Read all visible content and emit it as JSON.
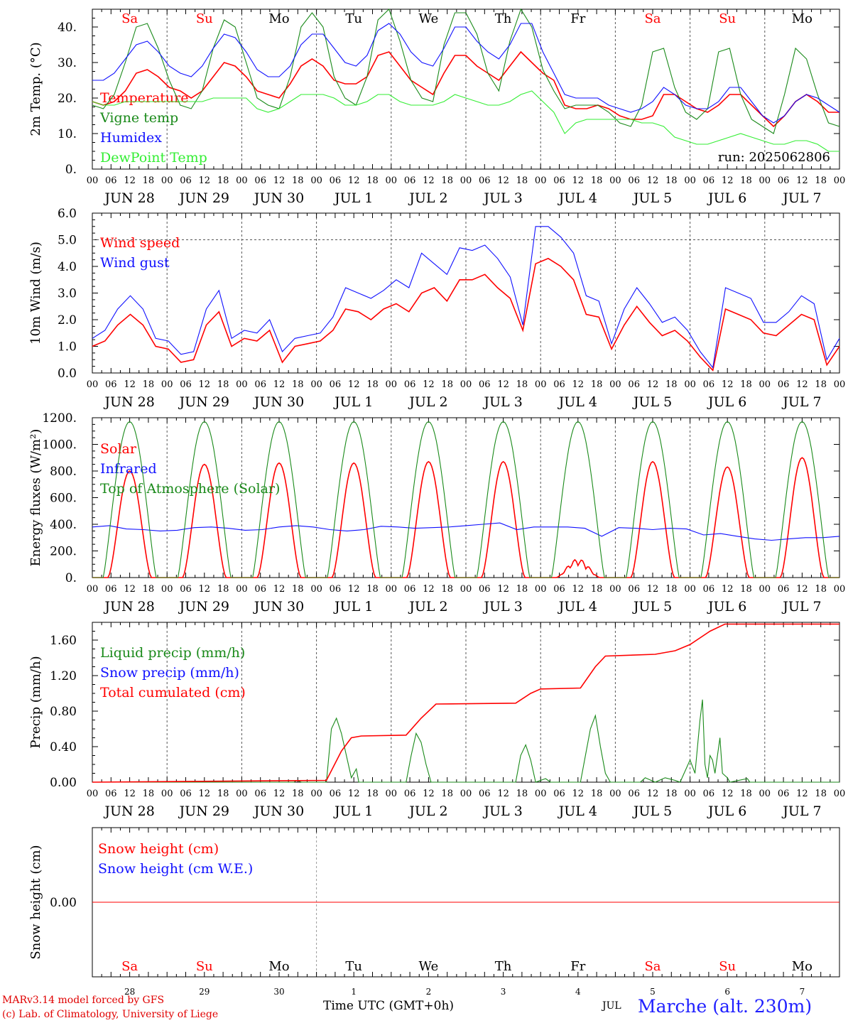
{
  "colors": {
    "red": "#ff0000",
    "green": "#1a8a1a",
    "blue": "#1010ff",
    "lime": "#33ee33",
    "axis": "#000000"
  },
  "days": {
    "weekday_top": [
      "Sa",
      "Su",
      "Mo",
      "Tu",
      "We",
      "Th",
      "Fr",
      "Sa",
      "Su",
      "Mo"
    ],
    "weekday_colors": [
      "#ff0000",
      "#ff0000",
      "#000000",
      "#000000",
      "#000000",
      "#000000",
      "#000000",
      "#ff0000",
      "#ff0000",
      "#000000"
    ],
    "date_labels": [
      "JUN 28",
      "JUN 29",
      "JUN 30",
      "JUL  1",
      "JUL  2",
      "JUL  3",
      "JUL  4",
      "JUL  5",
      "JUL  6",
      "JUL  7"
    ],
    "hour_ticks": [
      "00",
      "06",
      "12",
      "18"
    ],
    "last_tick": "00",
    "day_numbers": [
      "28",
      "29",
      "30",
      "1",
      "2",
      "3",
      "4",
      "5",
      "6",
      "7"
    ]
  },
  "footer": {
    "credit_line1": "MARv3.14 model forced by GFS",
    "credit_line2": "(c) Lab. of Climatology, University of Liege",
    "time_label": "Time UTC (GMT+0h)",
    "month_label": "JUL",
    "station": "Marche (alt. 230m)"
  },
  "chart_data": [
    {
      "type": "line",
      "ylabel": "2m Temp. (°C)",
      "ylim": [
        0,
        45
      ],
      "yticks": [
        0,
        10,
        20,
        30,
        40
      ],
      "ytick_labels": [
        "0.",
        "10.",
        "20.",
        "30.",
        "40."
      ],
      "annotation": "run: 2025062806",
      "x_hours_step": 6,
      "series": [
        {
          "name": "Temperature",
          "color": "#ff0000",
          "values": [
            19,
            18,
            19,
            22,
            27,
            28,
            26,
            23,
            22,
            20,
            22,
            26,
            30,
            29,
            26,
            22,
            21,
            20,
            24,
            29,
            31,
            29,
            25,
            24,
            24,
            26,
            32,
            33,
            29,
            25,
            23,
            21,
            27,
            32,
            32,
            29,
            27,
            25,
            29,
            33,
            30,
            27,
            25,
            18,
            17,
            17,
            18,
            17,
            15,
            14,
            14,
            15,
            21,
            21,
            19,
            17,
            16,
            18,
            21,
            21,
            18,
            15,
            12,
            15,
            19,
            21,
            19,
            16,
            16
          ]
        },
        {
          "name": "Vigne temp",
          "color": "#1a8a1a",
          "values": [
            18,
            17,
            21,
            30,
            40,
            41,
            34,
            25,
            18,
            17,
            22,
            34,
            42,
            40,
            30,
            20,
            18,
            17,
            26,
            40,
            44,
            40,
            26,
            20,
            18,
            26,
            42,
            45,
            36,
            25,
            20,
            19,
            35,
            44,
            44,
            38,
            27,
            22,
            36,
            45,
            40,
            28,
            22,
            17,
            18,
            18,
            18,
            16,
            13,
            12,
            18,
            33,
            34,
            23,
            16,
            14,
            17,
            33,
            34,
            21,
            14,
            12,
            10,
            21,
            34,
            31,
            21,
            13,
            12
          ]
        },
        {
          "name": "Humidex",
          "color": "#1010ff",
          "values": [
            25,
            25,
            27,
            31,
            35,
            36,
            33,
            29,
            27,
            26,
            29,
            34,
            38,
            37,
            33,
            28,
            26,
            26,
            29,
            35,
            38,
            38,
            34,
            30,
            29,
            32,
            39,
            41,
            38,
            33,
            30,
            29,
            34,
            40,
            40,
            36,
            33,
            31,
            35,
            41,
            41,
            33,
            27,
            21,
            20,
            20,
            20,
            18,
            17,
            16,
            17,
            19,
            23,
            21,
            18,
            17,
            17,
            19,
            23,
            23,
            19,
            15,
            13,
            15,
            19,
            21,
            20,
            18,
            16
          ]
        },
        {
          "name": "DewPoint Temp",
          "color": "#33ee33",
          "values": [
            19,
            18,
            18,
            19,
            19,
            19,
            19,
            19,
            19,
            19,
            19,
            20,
            20,
            20,
            20,
            17,
            16,
            17,
            19,
            21,
            21,
            21,
            20,
            18,
            18,
            19,
            21,
            21,
            19,
            18,
            18,
            18,
            19,
            21,
            20,
            19,
            18,
            18,
            19,
            21,
            22,
            19,
            16,
            10,
            13,
            14,
            14,
            14,
            14,
            14,
            13,
            13,
            12,
            9,
            8,
            7,
            7,
            8,
            9,
            10,
            9,
            8,
            7,
            7,
            8,
            8,
            7,
            5,
            5
          ]
        }
      ]
    },
    {
      "type": "line",
      "ylabel": "10m Wind (m/s)",
      "ylim": [
        0,
        6
      ],
      "yticks": [
        0,
        1,
        2,
        3,
        4,
        5,
        6
      ],
      "ytick_labels": [
        "0.0",
        "1.0",
        "2.0",
        "3.0",
        "4.0",
        "5.0",
        "6.0"
      ],
      "hline": 5,
      "x_hours_step": 6,
      "series": [
        {
          "name": "Wind speed",
          "color": "#ff0000",
          "values": [
            1.0,
            1.2,
            1.8,
            2.2,
            1.8,
            1.0,
            0.9,
            0.4,
            0.5,
            1.8,
            2.3,
            1.0,
            1.3,
            1.2,
            1.6,
            0.4,
            1.0,
            1.1,
            1.2,
            1.6,
            2.4,
            2.3,
            2.0,
            2.4,
            2.6,
            2.3,
            3.0,
            3.2,
            2.7,
            3.5,
            3.5,
            3.7,
            3.2,
            2.8,
            1.6,
            4.1,
            4.3,
            4.0,
            3.5,
            2.2,
            2.1,
            0.9,
            1.8,
            2.5,
            1.9,
            1.4,
            1.6,
            1.2,
            0.6,
            0.1,
            2.4,
            2.2,
            2.0,
            1.5,
            1.4,
            1.8,
            2.2,
            2.0,
            0.3,
            1.0
          ]
        },
        {
          "name": "Wind gust",
          "color": "#1010ff",
          "values": [
            1.3,
            1.6,
            2.4,
            2.9,
            2.4,
            1.3,
            1.2,
            0.7,
            0.8,
            2.4,
            3.1,
            1.3,
            1.6,
            1.5,
            2.0,
            0.8,
            1.3,
            1.4,
            1.5,
            2.1,
            3.2,
            3.0,
            2.8,
            3.1,
            3.5,
            3.2,
            4.5,
            4.1,
            3.7,
            4.7,
            4.6,
            4.8,
            4.3,
            3.6,
            1.8,
            5.5,
            5.5,
            5.1,
            4.5,
            2.9,
            2.7,
            1.1,
            2.4,
            3.2,
            2.6,
            1.9,
            2.1,
            1.6,
            0.8,
            0.2,
            3.2,
            3.0,
            2.8,
            1.9,
            1.9,
            2.3,
            2.9,
            2.6,
            0.5,
            1.3
          ]
        }
      ]
    },
    {
      "type": "line",
      "ylabel": "Energy fluxes (W/m²)",
      "ylim": [
        0,
        1200
      ],
      "yticks": [
        0,
        200,
        400,
        600,
        800,
        1000,
        1200
      ],
      "ytick_labels": [
        "0.",
        "200.",
        "400.",
        "600.",
        "800.",
        "1000.",
        "1200."
      ],
      "x_hours_step": 6,
      "series": [
        {
          "name": "Solar",
          "color": "#ff0000",
          "peaks": [
            800,
            850,
            860,
            860,
            870,
            870,
            140,
            870,
            830,
            900
          ]
        },
        {
          "name": "Infrared",
          "color": "#1010ff",
          "values": [
            380,
            390,
            365,
            360,
            350,
            355,
            375,
            380,
            370,
            355,
            360,
            380,
            390,
            380,
            360,
            350,
            360,
            385,
            380,
            370,
            375,
            380,
            390,
            400,
            410,
            360,
            380,
            380,
            380,
            370,
            310,
            375,
            370,
            360,
            370,
            365,
            320,
            330,
            310,
            290,
            280,
            290,
            300,
            300,
            310
          ]
        },
        {
          "name": "Top of Atmosphere (Solar)",
          "color": "#1a8a1a",
          "peaks": [
            1170,
            1170,
            1170,
            1170,
            1170,
            1170,
            1170,
            1170,
            1170,
            1170
          ]
        }
      ]
    },
    {
      "type": "line",
      "ylabel": "Precip (mm/h)",
      "ylim": [
        0,
        1.8
      ],
      "yticks": [
        0,
        0.4,
        0.8,
        1.2,
        1.6
      ],
      "ytick_labels": [
        "0.00",
        "0.40",
        "0.80",
        "1.20",
        "1.60"
      ],
      "x_hours_step": 6,
      "series": [
        {
          "name": "Liquid precip (mm/h)",
          "color": "#1a8a1a",
          "points": [
            [
              0,
              0
            ],
            [
              81,
              0
            ],
            [
              82,
              0.02
            ],
            [
              84,
              0
            ],
            [
              94,
              0
            ],
            [
              96,
              0.6
            ],
            [
              98,
              0.72
            ],
            [
              100,
              0.55
            ],
            [
              102,
              0.3
            ],
            [
              104,
              0.05
            ],
            [
              106,
              0.15
            ],
            [
              107,
              0
            ],
            [
              126,
              0
            ],
            [
              128,
              0.3
            ],
            [
              130,
              0.55
            ],
            [
              132,
              0.45
            ],
            [
              134,
              0.2
            ],
            [
              136,
              0
            ],
            [
              170,
              0
            ],
            [
              172,
              0.3
            ],
            [
              174,
              0.42
            ],
            [
              176,
              0.25
            ],
            [
              178,
              0
            ],
            [
              182,
              0.04
            ],
            [
              184,
              0
            ],
            [
              196,
              0
            ],
            [
              198,
              0.3
            ],
            [
              200,
              0.6
            ],
            [
              202,
              0.75
            ],
            [
              204,
              0.4
            ],
            [
              206,
              0.1
            ],
            [
              208,
              0
            ],
            [
              220,
              0
            ],
            [
              222,
              0.05
            ],
            [
              226,
              0
            ],
            [
              230,
              0.05
            ],
            [
              234,
              0.02
            ],
            [
              236,
              0
            ],
            [
              240,
              0.25
            ],
            [
              242,
              0.1
            ],
            [
              244,
              0.7
            ],
            [
              245,
              0.93
            ],
            [
              246,
              0.2
            ],
            [
              247,
              0.05
            ],
            [
              248,
              0.3
            ],
            [
              249,
              0.25
            ],
            [
              250,
              0.1
            ],
            [
              252,
              0.5
            ],
            [
              253,
              0.1
            ],
            [
              255,
              0.05
            ],
            [
              256,
              0
            ],
            [
              263,
              0.04
            ],
            [
              264,
              0
            ],
            [
              300,
              0
            ]
          ]
        },
        {
          "name": "Snow precip (mm/h)",
          "color": "#1010ff",
          "points": []
        },
        {
          "name": "Total cumulated (cm)",
          "color": "#ff0000",
          "points": [
            [
              0,
              0
            ],
            [
              94,
              0.02
            ],
            [
              100,
              0.35
            ],
            [
              104,
              0.5
            ],
            [
              108,
              0.52
            ],
            [
              126,
              0.53
            ],
            [
              132,
              0.72
            ],
            [
              138,
              0.88
            ],
            [
              170,
              0.89
            ],
            [
              176,
              1.0
            ],
            [
              180,
              1.05
            ],
            [
              196,
              1.06
            ],
            [
              202,
              1.3
            ],
            [
              206,
              1.42
            ],
            [
              226,
              1.44
            ],
            [
              234,
              1.48
            ],
            [
              240,
              1.55
            ],
            [
              248,
              1.7
            ],
            [
              254,
              1.78
            ],
            [
              300,
              1.78
            ]
          ]
        }
      ]
    },
    {
      "type": "line",
      "ylabel": "Snow height (cm)",
      "ylim": [
        -1,
        1
      ],
      "yticks": [
        0
      ],
      "ytick_labels": [
        "0.00"
      ],
      "x_hours_step": 6,
      "series": [
        {
          "name": "Snow height (cm)",
          "color": "#ff0000",
          "values": [
            0,
            0
          ]
        },
        {
          "name": "Snow height (cm W.E.)",
          "color": "#1010ff",
          "values": []
        }
      ]
    }
  ]
}
